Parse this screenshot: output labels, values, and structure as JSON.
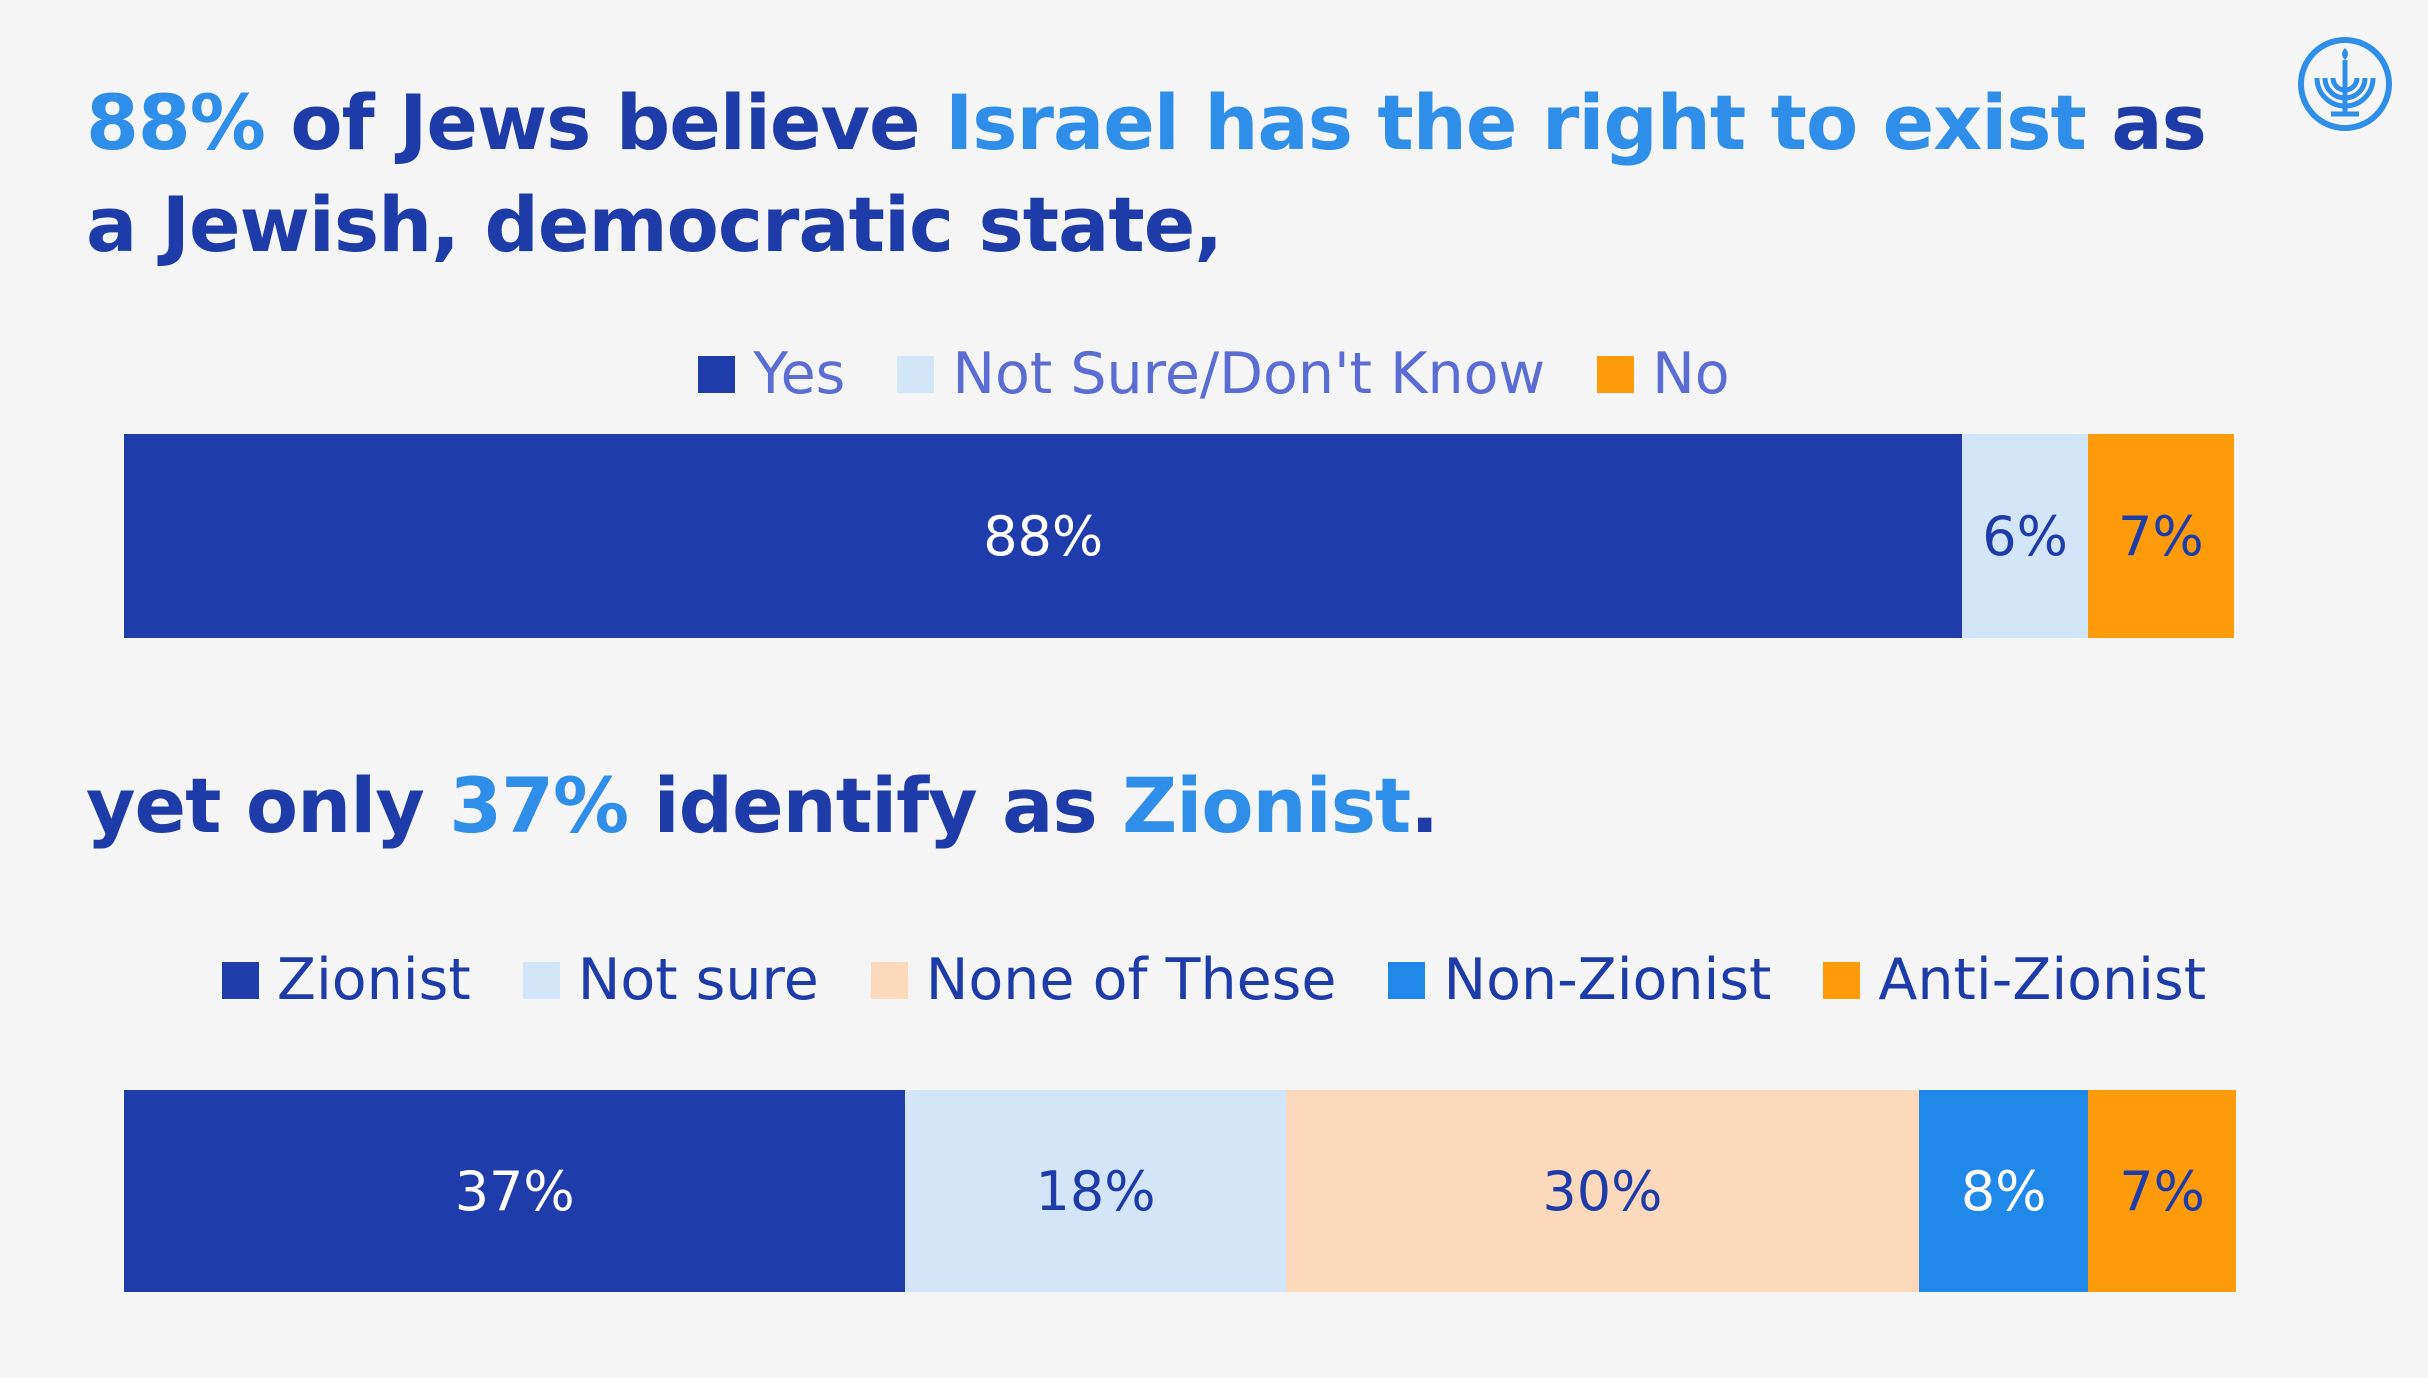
{
  "headline1": {
    "parts": [
      {
        "text": "88%",
        "highlight": true
      },
      {
        "text": " of Jews believe ",
        "highlight": false
      },
      {
        "text": "Israel has the right to exist",
        "highlight": true
      },
      {
        "text": " as a Jewish, democratic state,",
        "highlight": false
      }
    ]
  },
  "headline2": {
    "parts": [
      {
        "text": "yet only ",
        "highlight": false
      },
      {
        "text": "37%",
        "highlight": true
      },
      {
        "text": " identify as ",
        "highlight": false
      },
      {
        "text": "Zionist",
        "highlight": true
      },
      {
        "text": ".",
        "highlight": false
      }
    ]
  },
  "logo": {
    "icon": "menorah-circle-icon",
    "color": "#2e8ee8"
  },
  "chart_data": [
    {
      "type": "bar",
      "stacked": true,
      "orientation": "horizontal",
      "legend_position": "top-center",
      "series": [
        {
          "name": "Yes",
          "value": 88,
          "label": "88%",
          "color": "#1e3caa"
        },
        {
          "name": "Not Sure/Don't Know",
          "value": 6,
          "label": "6%",
          "color": "#d3e6f9"
        },
        {
          "name": "No",
          "value": 7,
          "label": "7%",
          "color": "#fd9b0b"
        }
      ]
    },
    {
      "type": "bar",
      "stacked": true,
      "orientation": "horizontal",
      "legend_position": "top-center",
      "series": [
        {
          "name": "Zionist",
          "value": 37,
          "label": "37%",
          "color": "#1e3caa"
        },
        {
          "name": "Not sure",
          "value": 18,
          "label": "18%",
          "color": "#d3e6f9"
        },
        {
          "name": "None of These",
          "value": 30,
          "label": "30%",
          "color": "#fdd9bc"
        },
        {
          "name": "Non-Zionist",
          "value": 8,
          "label": "8%",
          "color": "#1f88e8"
        },
        {
          "name": "Anti-Zionist",
          "value": 7,
          "label": "7%",
          "color": "#fd9b0b"
        }
      ]
    }
  ]
}
